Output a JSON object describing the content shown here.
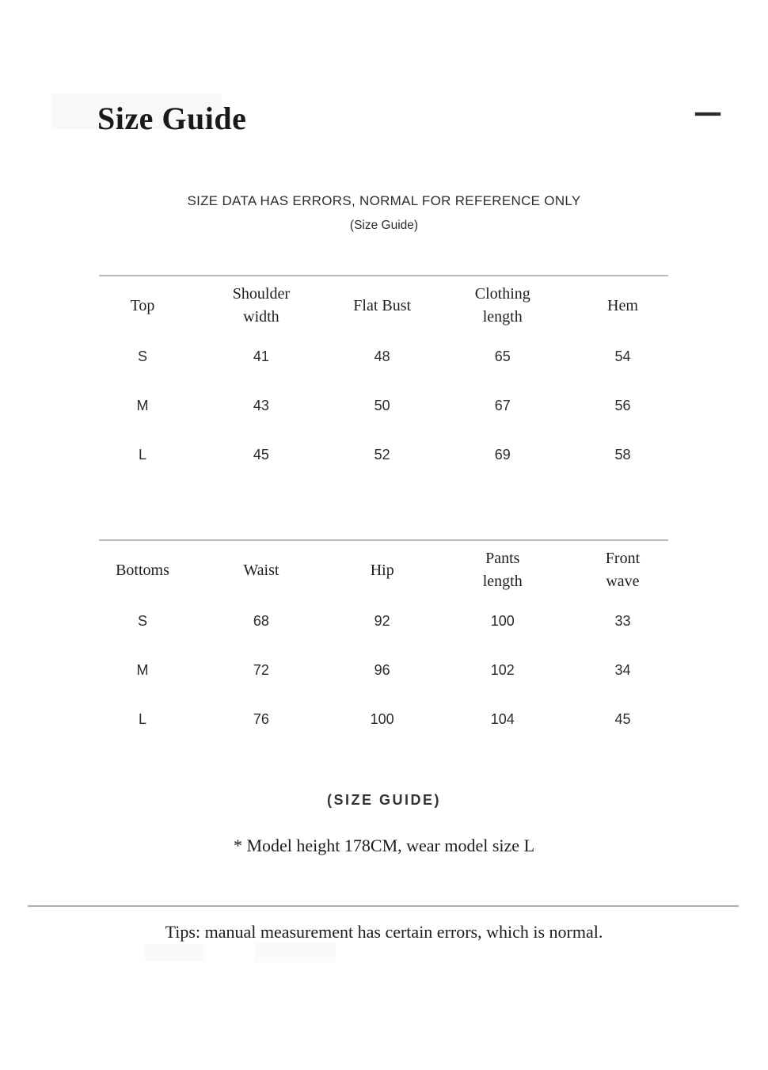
{
  "header": {
    "title": "Size Guide",
    "collapse_icon": "minus"
  },
  "disclaimer": {
    "line1": "SIZE DATA HAS ERRORS, NORMAL FOR REFERENCE ONLY",
    "line2": "(Size Guide)"
  },
  "tables": [
    {
      "name": "top-sizes",
      "headers": [
        "Top",
        "Shoulder width",
        "Flat Bust",
        "Clothing length",
        "Hem"
      ],
      "rows": [
        {
          "size": "S",
          "values": [
            "41",
            "48",
            "65",
            "54"
          ]
        },
        {
          "size": "M",
          "values": [
            "43",
            "50",
            "67",
            "56"
          ]
        },
        {
          "size": "L",
          "values": [
            "45",
            "52",
            "69",
            "58"
          ]
        }
      ]
    },
    {
      "name": "bottoms-sizes",
      "headers": [
        "Bottoms",
        "Waist",
        "Hip",
        "Pants length",
        "Front wave"
      ],
      "rows": [
        {
          "size": "S",
          "values": [
            "68",
            "92",
            "100",
            "33"
          ]
        },
        {
          "size": "M",
          "values": [
            "72",
            "96",
            "102",
            "34"
          ]
        },
        {
          "size": "L",
          "values": [
            "76",
            "100",
            "104",
            "45"
          ]
        }
      ]
    }
  ],
  "footer": {
    "size_guide_label": "(SIZE GUIDE)",
    "model_note": "* Model height 178CM, wear model size L",
    "tips": "Tips: manual measurement has certain errors, which is normal."
  },
  "colors": {
    "text": "#1c1c1c",
    "rule": "#b9b9b9",
    "background": "#ffffff"
  }
}
